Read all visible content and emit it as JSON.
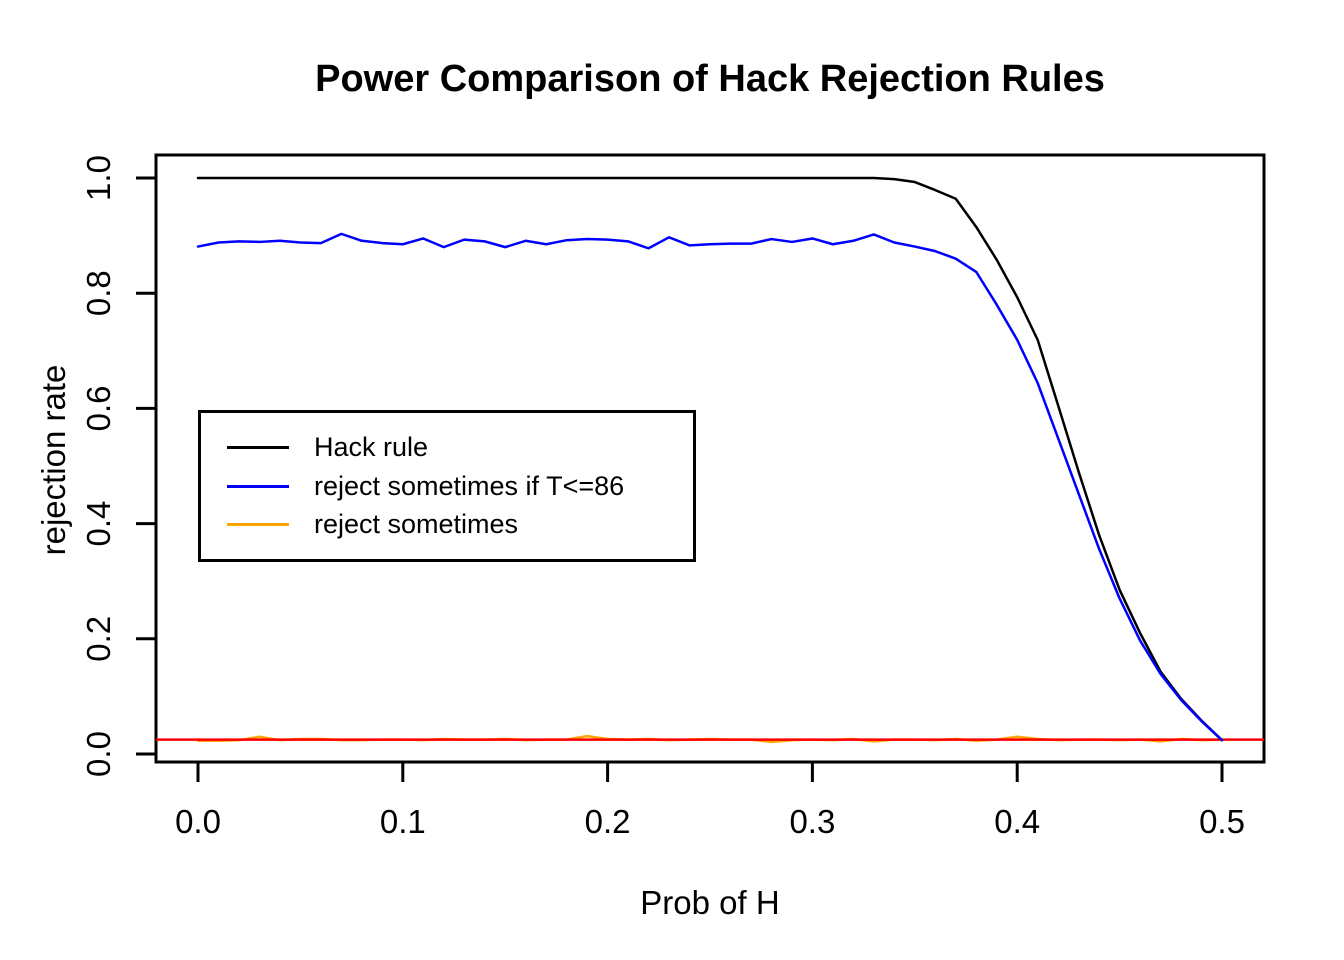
{
  "title": "Power Comparison of Hack Rejection Rules",
  "x_axis": {
    "label": "Prob of H",
    "ticks": [
      "0.0",
      "0.1",
      "0.2",
      "0.3",
      "0.4",
      "0.5"
    ],
    "tick_values": [
      0,
      0.1,
      0.2,
      0.3,
      0.4,
      0.5
    ]
  },
  "y_axis": {
    "label": "rejection rate",
    "ticks": [
      "0.0",
      "0.2",
      "0.4",
      "0.6",
      "0.8",
      "1.0"
    ],
    "tick_values": [
      0,
      0.2,
      0.4,
      0.6,
      0.8,
      1.0
    ]
  },
  "legend": {
    "items": [
      {
        "label": "Hack rule",
        "color": "#000000"
      },
      {
        "label": "reject sometimes if T<=86",
        "color": "#0000ff"
      },
      {
        "label": "reject sometimes",
        "color": "#ffa500"
      }
    ]
  },
  "colors": {
    "hack_rule": "#000000",
    "reject_sometimes_t86": "#0000ff",
    "reject_sometimes": "#ffa500",
    "significance_line": "#ff0000",
    "axis": "#000000",
    "background": "#ffffff"
  },
  "chart_data": {
    "type": "line",
    "title": "Power Comparison of Hack Rejection Rules",
    "xlabel": "Prob of H",
    "ylabel": "rejection rate",
    "xlim": [
      0,
      0.5
    ],
    "ylim": [
      0,
      1
    ],
    "grid": false,
    "legend_position": "left-middle",
    "x": [
      0,
      0.01,
      0.02,
      0.03,
      0.04,
      0.05,
      0.06,
      0.07,
      0.08,
      0.09,
      0.1,
      0.11,
      0.12,
      0.13,
      0.14,
      0.15,
      0.16,
      0.17,
      0.18,
      0.19,
      0.2,
      0.21,
      0.22,
      0.23,
      0.24,
      0.25,
      0.26,
      0.27,
      0.28,
      0.29,
      0.3,
      0.31,
      0.32,
      0.33,
      0.34,
      0.35,
      0.36,
      0.37,
      0.38,
      0.39,
      0.4,
      0.41,
      0.42,
      0.43,
      0.44,
      0.45,
      0.46,
      0.47,
      0.48,
      0.49,
      0.5
    ],
    "series": [
      {
        "name": "Hack rule",
        "color": "#000000",
        "values": [
          1.0,
          1.0,
          1.0,
          1.0,
          1.0,
          1.0,
          1.0,
          1.0,
          1.0,
          1.0,
          1.0,
          1.0,
          1.0,
          1.0,
          1.0,
          1.0,
          1.0,
          1.0,
          1.0,
          1.0,
          1.0,
          1.0,
          1.0,
          1.0,
          1.0,
          1.0,
          1.0,
          1.0,
          1.0,
          1.0,
          1.0,
          1.0,
          1.0,
          1.0,
          0.998,
          0.993,
          0.979,
          0.964,
          0.915,
          0.858,
          0.793,
          0.719,
          0.605,
          0.49,
          0.38,
          0.285,
          0.21,
          0.143,
          0.096,
          0.058,
          0.024
        ]
      },
      {
        "name": "reject sometimes if T<=86",
        "color": "#0000ff",
        "values": [
          0.881,
          0.888,
          0.89,
          0.889,
          0.891,
          0.888,
          0.887,
          0.903,
          0.891,
          0.887,
          0.885,
          0.895,
          0.88,
          0.893,
          0.89,
          0.88,
          0.891,
          0.885,
          0.892,
          0.894,
          0.893,
          0.89,
          0.878,
          0.897,
          0.883,
          0.885,
          0.886,
          0.886,
          0.894,
          0.889,
          0.895,
          0.885,
          0.891,
          0.902,
          0.888,
          0.881,
          0.873,
          0.86,
          0.837,
          0.78,
          0.719,
          0.644,
          0.548,
          0.452,
          0.356,
          0.27,
          0.197,
          0.139,
          0.094,
          0.057,
          0.024
        ]
      },
      {
        "name": "reject sometimes",
        "color": "#ffa500",
        "values": [
          0.023,
          0.023,
          0.024,
          0.03,
          0.024,
          0.026,
          0.026,
          0.024,
          0.024,
          0.025,
          0.025,
          0.024,
          0.026,
          0.025,
          0.025,
          0.026,
          0.024,
          0.025,
          0.025,
          0.031,
          0.026,
          0.025,
          0.026,
          0.024,
          0.025,
          0.026,
          0.025,
          0.025,
          0.021,
          0.024,
          0.025,
          0.024,
          0.026,
          0.022,
          0.025,
          0.025,
          0.024,
          0.026,
          0.023,
          0.025,
          0.03,
          0.026,
          0.024,
          0.025,
          0.025,
          0.024,
          0.025,
          0.022,
          0.026,
          0.024,
          0.025
        ]
      }
    ],
    "hline": {
      "y": 0.025,
      "color": "#ff0000"
    }
  }
}
